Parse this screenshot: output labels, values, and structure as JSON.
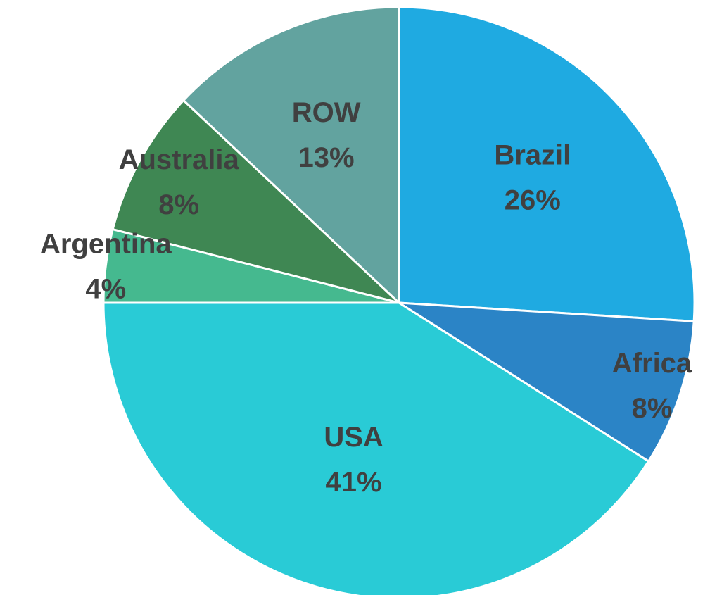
{
  "chart_data": {
    "type": "pie",
    "start_angle_deg": 0,
    "direction": "clockwise",
    "slices": [
      {
        "label": "Brazil",
        "value": 26,
        "value_label": "26%",
        "color": "#1FAAE1"
      },
      {
        "label": "Africa",
        "value": 8,
        "value_label": "8%",
        "color": "#2B84C6"
      },
      {
        "label": "USA",
        "value": 41,
        "value_label": "41%",
        "color": "#29CBD6"
      },
      {
        "label": "Argentina",
        "value": 4,
        "value_label": "4%",
        "color": "#45B98F"
      },
      {
        "label": "Australia",
        "value": 8,
        "value_label": "8%",
        "color": "#3F8753"
      },
      {
        "label": "ROW",
        "value": 13,
        "value_label": "13%",
        "color": "#62A39F"
      }
    ]
  }
}
